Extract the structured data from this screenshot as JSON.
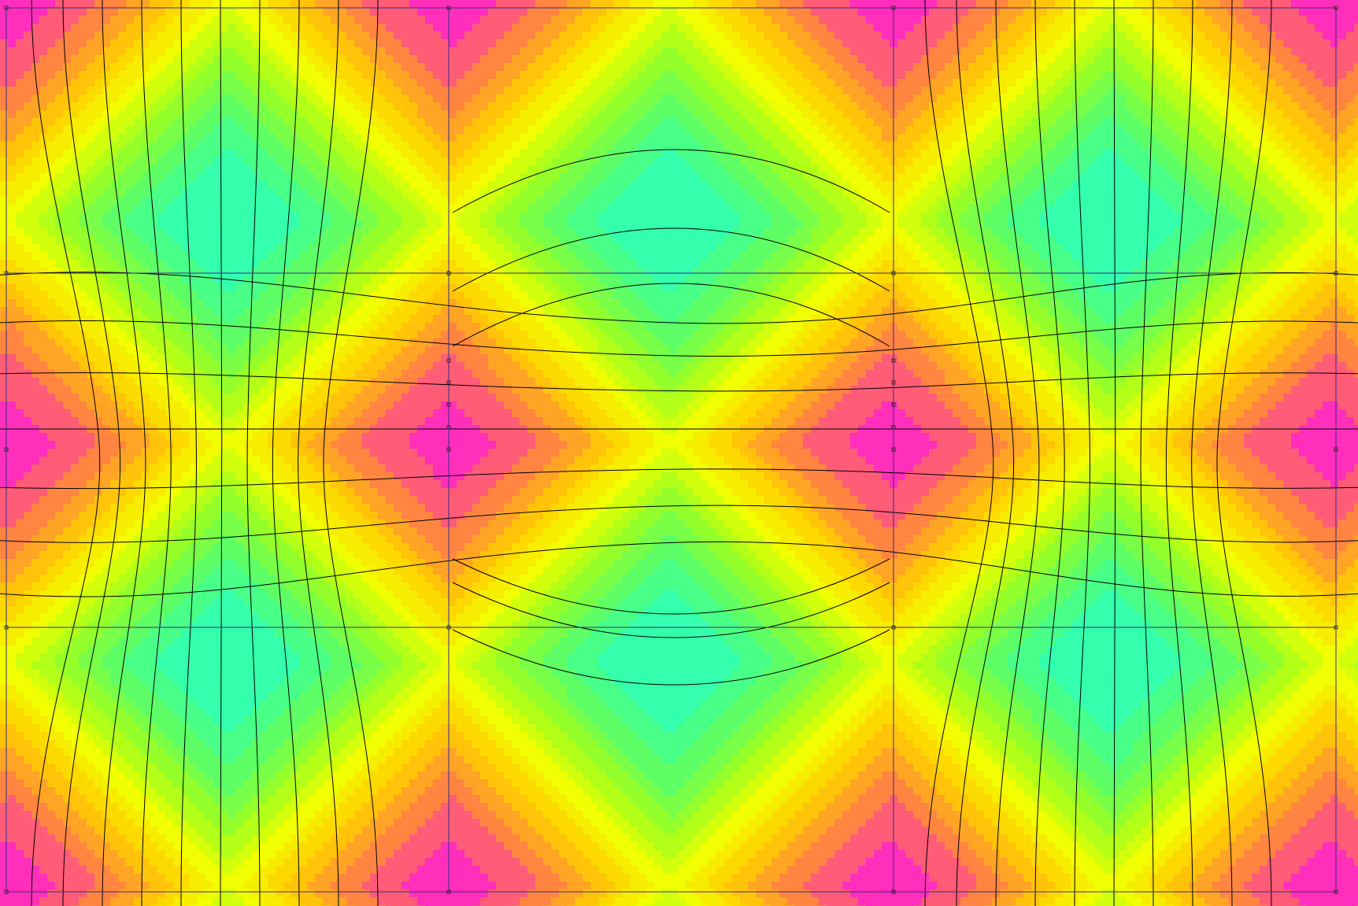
{
  "colormap": {
    "stops": [
      "#ff00ff",
      "#ff7a4a",
      "#ffce00",
      "#f2ff00",
      "#9dff20",
      "#55ff70",
      "#20ffd0"
    ],
    "background": "#ffffff"
  },
  "field": {
    "low_centers": [
      {
        "x": 0,
        "y": 0
      },
      {
        "x": 2,
        "y": 0
      },
      {
        "x": 4,
        "y": 0
      },
      {
        "x": 0,
        "y": 2
      },
      {
        "x": 2,
        "y": 2
      },
      {
        "x": 4,
        "y": 2
      },
      {
        "x": 1,
        "y": 1
      },
      {
        "x": 3,
        "y": 1
      }
    ],
    "high_centers": [
      {
        "x": 1,
        "y": 0
      },
      {
        "x": 3,
        "y": 0
      },
      {
        "x": 0,
        "y": 1
      },
      {
        "x": 2,
        "y": 1
      },
      {
        "x": 4,
        "y": 1
      },
      {
        "x": 1,
        "y": 2
      },
      {
        "x": 3,
        "y": 2
      }
    ],
    "domain": {
      "xmin": -0.02,
      "xmax": 3.06,
      "ymin": 0.0,
      "ymax": 2.05
    }
  },
  "mesh": {
    "line_color": "#3a2a8a",
    "node_color": "#1a1a1a",
    "isoline_color": "#000000"
  }
}
